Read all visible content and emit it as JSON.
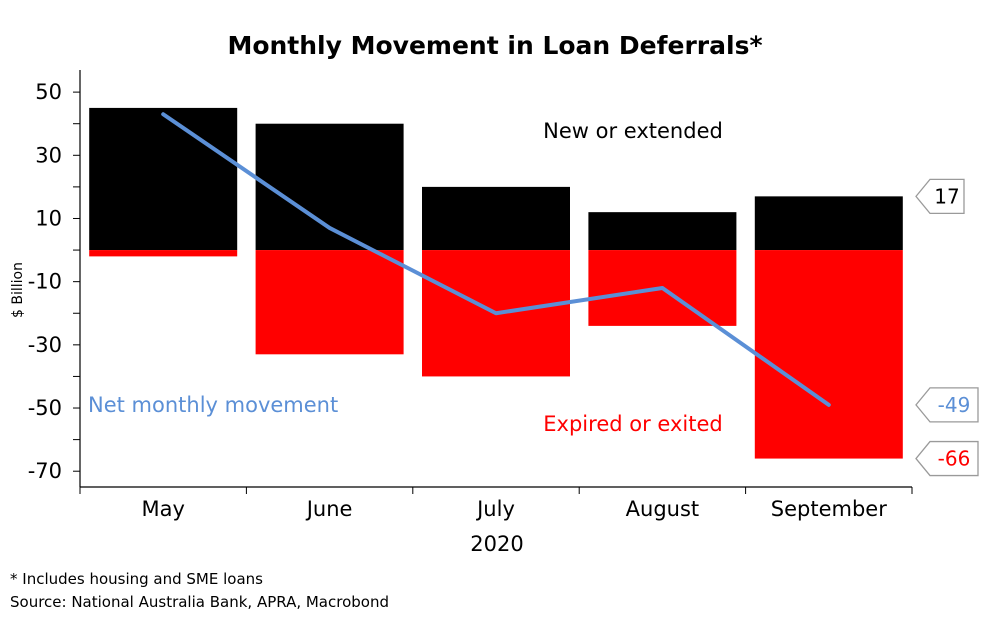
{
  "chart_data": {
    "type": "bar",
    "title": "Monthly Movement in Loan Deferrals*",
    "ylabel": "$ Billion",
    "xlabel": "2020",
    "ylim": [
      -75,
      57
    ],
    "yticks": [
      50,
      30,
      10,
      -10,
      -30,
      -50,
      -70
    ],
    "categories": [
      "May",
      "June",
      "July",
      "August",
      "September"
    ],
    "series": [
      {
        "name": "New or extended",
        "kind": "bar",
        "color": "#000000",
        "values": [
          45,
          40,
          20,
          12,
          17
        ]
      },
      {
        "name": "Expired or exited",
        "kind": "bar",
        "color": "#ff0000",
        "values": [
          -2,
          -33,
          -40,
          -24,
          -66
        ]
      },
      {
        "name": "Net monthly movement",
        "kind": "line",
        "color": "#5b8fd6",
        "values": [
          43,
          7,
          -20,
          -12,
          -49
        ]
      }
    ],
    "callouts": [
      {
        "text": "17",
        "value": 17,
        "color": "#000000"
      },
      {
        "text": "-49",
        "value": -49,
        "color": "#5b8fd6"
      },
      {
        "text": "-66",
        "value": -66,
        "color": "#ff0000"
      }
    ],
    "grid": false
  },
  "footnotes": {
    "note": "* Includes housing and SME loans",
    "source": "Source: National Australia Bank, APRA, Macrobond"
  }
}
